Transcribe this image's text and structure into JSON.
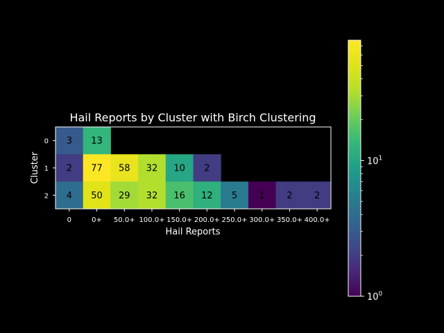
{
  "chart_data": {
    "type": "heatmap",
    "title": "Hail Reports by Cluster with Birch Clustering",
    "xlabel": "Hail Reports",
    "ylabel": "Cluster",
    "x_categories": [
      "0",
      "0+",
      "50.0+",
      "100.0+",
      "150.0+",
      "200.0+",
      "250.0+",
      "300.0+",
      "350.0+",
      "400.0+"
    ],
    "y_categories": [
      "0",
      "1",
      "2"
    ],
    "values": [
      [
        3,
        13,
        null,
        null,
        null,
        null,
        null,
        null,
        null,
        null
      ],
      [
        2,
        77,
        58,
        32,
        10,
        2,
        null,
        null,
        null,
        null
      ],
      [
        4,
        50,
        29,
        32,
        16,
        12,
        5,
        1,
        2,
        2
      ]
    ],
    "colorscale": "viridis",
    "color_scale_type": "log",
    "colorbar_range": [
      1,
      77
    ],
    "colorbar_ticks": [
      {
        "value": 1,
        "label": "10",
        "exp": "0"
      },
      {
        "value": 10,
        "label": "10",
        "exp": "1"
      }
    ],
    "background_color": "#000000",
    "foreground_color": "#ffffff"
  }
}
